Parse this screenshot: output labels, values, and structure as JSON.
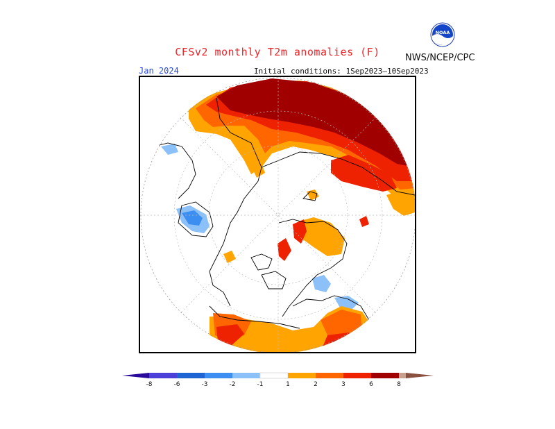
{
  "header": {
    "title": "CFSv2 monthly T2m anomalies (F)",
    "agency": "NWS/NCEP/CPC",
    "logo_text": "NOAA",
    "month": "Jan 2024",
    "initial_conditions": "Initial conditions: 1Sep2023—10Sep2023"
  },
  "colorbar": {
    "ticks": [
      "-8",
      "-6",
      "-3",
      "-2",
      "-1",
      "1",
      "2",
      "3",
      "6",
      "8"
    ],
    "colors": {
      "lt_neg8": "#2a0a9c",
      "neg8_neg6": "#4a40d8",
      "neg6_neg3": "#1e64d2",
      "neg3_neg2": "#3c8ef0",
      "neg2_neg1": "#8cc0f8",
      "neg1_1": "#ffffff",
      "p1_2": "#ffa400",
      "p2_3": "#ff6600",
      "p3_6": "#ee2200",
      "p6_8": "#a00000",
      "p8_up": "#c8a090",
      "gt_8": "#8a5040"
    }
  }
}
